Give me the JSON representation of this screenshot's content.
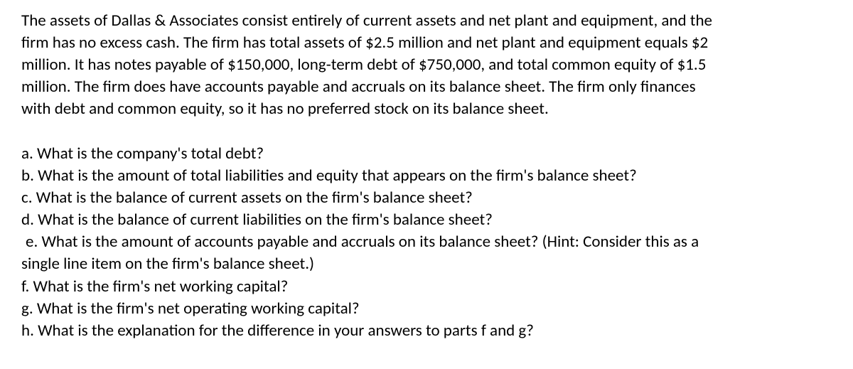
{
  "intro": {
    "line1": "The assets of Dallas & Associates consist entirely of current assets and net plant and equipment, and the",
    "line2": "firm has no excess cash. The firm has total assets of $2.5 million and net plant and equipment equals $2",
    "line3": "million. It has notes payable of $150,000, long-term debt of $750,000, and total common equity of $1.5",
    "line4": "million. The firm does have accounts payable and accruals on its balance sheet. The firm only finances",
    "line5": "with debt and common equity, so it has no preferred stock on its balance sheet."
  },
  "questions": {
    "a": "a. What is the company's total debt?",
    "b": "b. What is the amount of total liabilities and equity that appears on the firm's balance sheet?",
    "c": "c. What is the balance of current assets on the firm's balance sheet?",
    "d": "d. What is the balance of current liabilities on the firm's balance sheet?",
    "e_line1": " e. What is the amount of accounts payable and accruals on its balance sheet? (Hint: Consider this as a",
    "e_line2": "single line item on the firm's balance sheet.)",
    "f": "f. What is the firm's net working capital?",
    "g": "g. What is the firm's net operating working capital?",
    "h": "h. What is the explanation for the difference in your answers to parts f and g?"
  }
}
